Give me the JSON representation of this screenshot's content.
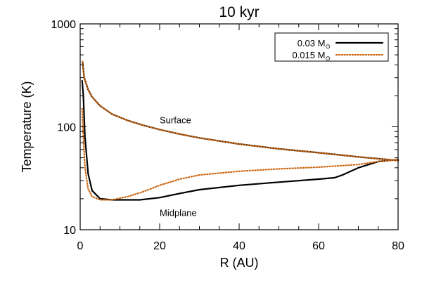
{
  "chart_data": {
    "type": "line",
    "title": "10 kyr",
    "xlabel": "R (AU)",
    "ylabel": "Temperature (K)",
    "xlim": [
      0,
      80
    ],
    "ylim": [
      10,
      1000
    ],
    "yscale": "log",
    "x_ticks": [
      0,
      20,
      40,
      60,
      80
    ],
    "y_ticks": [
      10,
      100,
      1000
    ],
    "x_tick_labels": [
      "0",
      "20",
      "40",
      "60",
      "80"
    ],
    "y_tick_labels": [
      "10",
      "100",
      "1000"
    ],
    "annotations": [
      "Surface",
      "Midplane"
    ],
    "legend_position": "top-right",
    "series": [
      {
        "name": "0.03 M⊙",
        "legend_main": "0.03 M",
        "legend_sub": "⊙",
        "color": "#000000",
        "style": "solid",
        "surface": {
          "x": [
            0.6,
            1,
            2,
            3,
            5,
            8,
            12,
            16,
            20,
            25,
            30,
            40,
            50,
            60,
            70,
            80
          ],
          "y": [
            430,
            300,
            230,
            195,
            160,
            133,
            115,
            103,
            94,
            85,
            78,
            68,
            61,
            56,
            51,
            47
          ]
        },
        "midplane": {
          "x": [
            0.5,
            0.8,
            1.2,
            2,
            3,
            5,
            8,
            15,
            20,
            25,
            30,
            40,
            50,
            60,
            64,
            66,
            70,
            75,
            80
          ],
          "y": [
            280,
            200,
            80,
            35,
            24,
            20,
            19.5,
            19.5,
            20.5,
            22.5,
            24.5,
            27,
            29,
            31,
            32,
            34,
            40,
            46,
            48
          ]
        }
      },
      {
        "name": "0.015 M⊙",
        "legend_main": "0.015 M",
        "legend_sub": "⊙",
        "color": "#cc6611",
        "style": "dotted",
        "surface": {
          "x": [
            0.6,
            1,
            2,
            3,
            5,
            8,
            12,
            16,
            20,
            25,
            30,
            40,
            50,
            60,
            70,
            80
          ],
          "y": [
            430,
            300,
            230,
            195,
            160,
            133,
            115,
            103,
            94,
            85,
            78,
            68,
            61,
            56,
            51,
            47
          ]
        },
        "midplane": {
          "x": [
            0.5,
            0.8,
            1.2,
            2,
            3,
            5,
            8,
            12,
            16,
            20,
            25,
            30,
            40,
            50,
            60,
            70,
            75,
            80
          ],
          "y": [
            150,
            80,
            40,
            25,
            21,
            19.5,
            19.5,
            21,
            23.5,
            27,
            31,
            34,
            37,
            39,
            40.5,
            43,
            46,
            48
          ]
        }
      }
    ]
  }
}
